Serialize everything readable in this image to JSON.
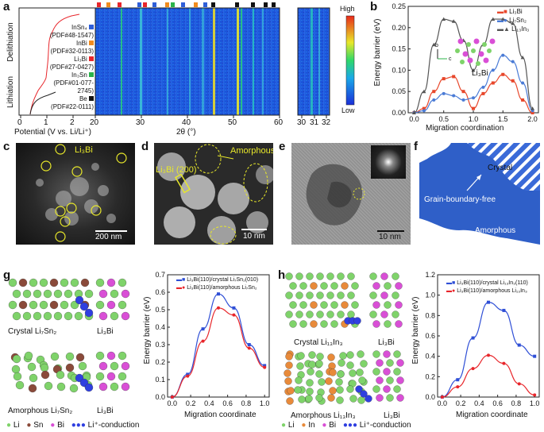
{
  "panels": {
    "a": "a",
    "b": "b",
    "c": "c",
    "d": "d",
    "e": "e",
    "f": "f",
    "g": "g",
    "h": "h"
  },
  "panel_a": {
    "delithiation": "Delithiation",
    "lithiation": "Lithiation",
    "xlabel_left": "Potential (V vs. Li/Li⁺)",
    "xlabel_right": "2θ (°)",
    "colorbar_high": "High",
    "colorbar_low": "Low",
    "xticks_left": [
      "0",
      "1",
      "2"
    ],
    "xticks_mid": [
      "20",
      "30",
      "40",
      "50",
      "60"
    ],
    "xticks_right": [
      "30",
      "31",
      "32"
    ],
    "legend": [
      {
        "name": "InSn₄",
        "pdf": "(PDF#48-1547)",
        "color": "#2f5fd8"
      },
      {
        "name": "InBi",
        "pdf": "(PDF#32-0113)",
        "color": "#f28c1e"
      },
      {
        "name": "Li₃Bi",
        "pdf": "(PDF#27-0427)",
        "color": "#e8262b"
      },
      {
        "name": "In₃Sn",
        "pdf": "(PDF#01-077-2745)",
        "color": "#2bb34a"
      },
      {
        "name": "Be",
        "pdf": "(PDF#22-0111)",
        "color": "#111111"
      }
    ]
  },
  "panel_b": {
    "ylabel": "Energy barrier (eV)",
    "xlabel": "Migration coordination",
    "inset_label": "Li₃Bi",
    "axis_b": "b",
    "axis_c": "c"
  },
  "chart_data": [
    {
      "type": "line",
      "x": [
        0,
        0.167,
        0.333,
        0.5,
        0.667,
        0.833,
        1.0,
        1.167,
        1.333,
        1.5,
        1.667,
        1.833,
        2.0
      ],
      "series": [
        {
          "name": "Li₃Bi",
          "color": "#e8472b",
          "values": [
            0,
            0.01,
            0.05,
            0.08,
            0.085,
            0.05,
            0.01,
            0.045,
            0.07,
            0.09,
            0.075,
            0.03,
            0.0
          ]
        },
        {
          "name": "Li₇Sn₂",
          "color": "#4a7bd6",
          "values": [
            0,
            0.005,
            0.03,
            0.045,
            0.04,
            0.03,
            0.035,
            0.06,
            0.1,
            0.135,
            0.12,
            0.07,
            0.005
          ]
        },
        {
          "name": "Li₁₃In₃",
          "color": "#555555",
          "values": [
            0,
            0.05,
            0.16,
            0.22,
            0.215,
            0.17,
            0.1,
            0.16,
            0.22,
            0.22,
            0.21,
            0.13,
            0.01
          ]
        }
      ],
      "xlabel": "Migration coordination",
      "ylabel": "Energy barrier (eV)",
      "xlim": [
        -0.1,
        2.1
      ],
      "ylim": [
        0,
        0.25
      ],
      "xticks": [
        "0.0",
        "0.5",
        "1.0",
        "1.5",
        "2.0"
      ],
      "yticks": [
        "0.00",
        "0.05",
        "0.10",
        "0.15",
        "0.20",
        "0.25"
      ]
    },
    {
      "type": "line",
      "x": [
        0,
        0.167,
        0.333,
        0.5,
        0.667,
        0.833,
        1.0
      ],
      "series": [
        {
          "name": "Li₃Bi(110)/crystal Li₇Sn₂(010)",
          "color": "#2f4fd6",
          "values": [
            0,
            0.13,
            0.39,
            0.59,
            0.51,
            0.3,
            0.18
          ]
        },
        {
          "name": "Li₃Bi(110)/amorphous Li₇Sn₂",
          "color": "#e8262b",
          "values": [
            0,
            0.12,
            0.32,
            0.51,
            0.47,
            0.28,
            0.17
          ]
        }
      ],
      "xlabel": "Migration coordinate",
      "ylabel": "Energy barrier (eV)",
      "xlim": [
        -0.05,
        1.05
      ],
      "ylim": [
        0,
        0.7
      ],
      "xticks": [
        "0.0",
        "0.2",
        "0.4",
        "0.6",
        "0.8",
        "1.0"
      ],
      "yticks": [
        "0.0",
        "0.1",
        "0.2",
        "0.3",
        "0.4",
        "0.5",
        "0.6",
        "0.7"
      ]
    },
    {
      "type": "line",
      "x": [
        0,
        0.167,
        0.333,
        0.5,
        0.667,
        0.833,
        1.0
      ],
      "series": [
        {
          "name": "Li₃Bi(110)/crystal Li₁₃In₃(110)",
          "color": "#2f4fd6",
          "values": [
            0,
            0.17,
            0.58,
            0.93,
            0.85,
            0.51,
            0.4
          ]
        },
        {
          "name": "Li₃Bi(110)/amorphous Li₁₃In₃",
          "color": "#e8262b",
          "values": [
            0,
            0.1,
            0.28,
            0.41,
            0.33,
            0.13,
            0.02
          ]
        }
      ],
      "xlabel": "Migration coordinate",
      "ylabel": "Energy barrier (eV)",
      "xlim": [
        -0.05,
        1.05
      ],
      "ylim": [
        0,
        1.2
      ],
      "xticks": [
        "0.0",
        "0.2",
        "0.4",
        "0.6",
        "0.8",
        "1.0"
      ],
      "yticks": [
        "0.0",
        "0.2",
        "0.4",
        "0.6",
        "0.8",
        "1.0",
        "1.2"
      ]
    }
  ],
  "panel_c": {
    "label": "Li₃Bi",
    "scale": "200 nm"
  },
  "panel_d": {
    "amorphous": "Amorphous",
    "facet": "Li₃Bi (200)",
    "scale": "10 nm"
  },
  "panel_e": {
    "scale": "10 nm"
  },
  "panel_f": {
    "crystal": "Crystal",
    "gb": "Grain-boundary-free",
    "amorphous": "Amorphous"
  },
  "panel_g": {
    "crystal": "Crystal Li₇Sn₂",
    "li3bi_top": "Li₃Bi",
    "amorphous": "Amorphous Li₇Sn₂",
    "li3bi_bot": "Li₃Bi",
    "legend": {
      "li": "Li",
      "sn": "Sn",
      "bi": "Bi",
      "cond": "Li⁺-conduction"
    }
  },
  "panel_h": {
    "crystal": "Crystal Li₁₃In₃",
    "li3bi_top": "Li₃Bi",
    "amorphous": "Amorphous Li₁₃In₃",
    "li3bi_bot": "Li₃Bi",
    "legend": {
      "li": "Li",
      "in": "In",
      "bi": "Bi",
      "cond": "Li⁺-conduction"
    }
  },
  "colors": {
    "li": "#7fd36a",
    "sn": "#8a4a3a",
    "bi": "#d94fd6",
    "in": "#e88a3a",
    "cond": "#2f3fe0",
    "heat_low": "#1a2fd8",
    "heat_high": "#e82a1a"
  }
}
